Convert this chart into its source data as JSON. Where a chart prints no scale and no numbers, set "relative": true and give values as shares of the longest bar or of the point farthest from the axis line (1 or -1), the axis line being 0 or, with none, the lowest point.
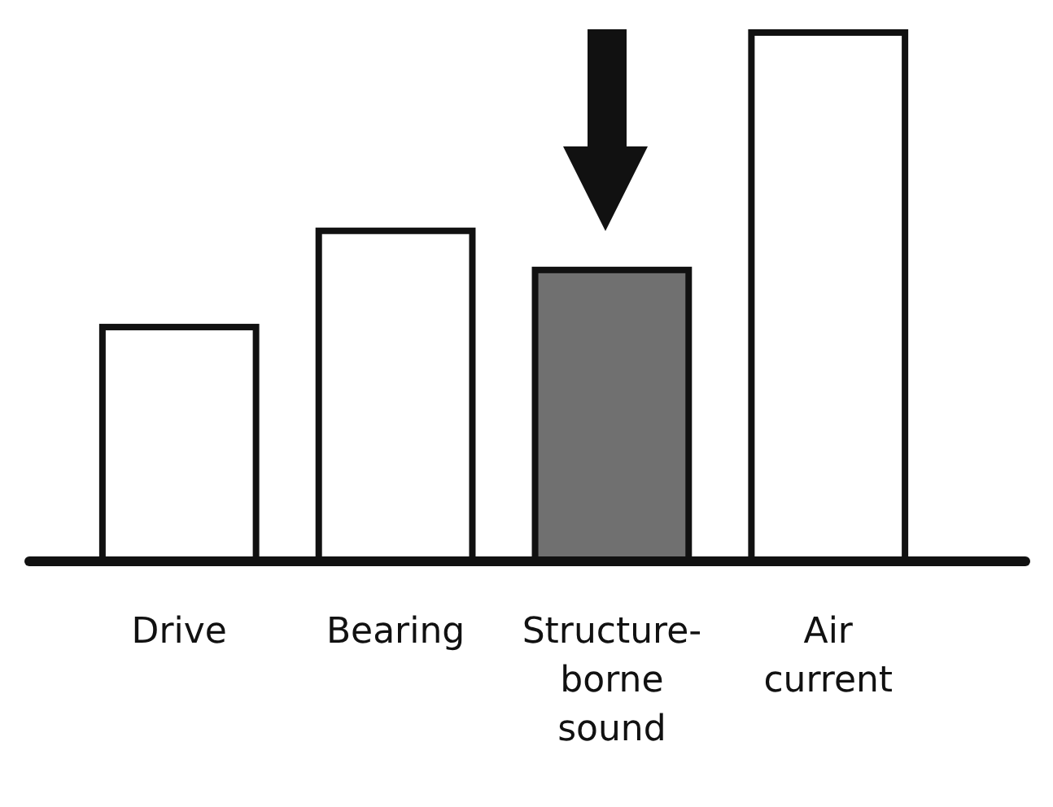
{
  "chart_data": {
    "type": "bar",
    "relative": true,
    "categories": [
      "Drive",
      "Bearing",
      "Structure-\nborne\nsound",
      "Air\ncurrent"
    ],
    "values": [
      0.443,
      0.625,
      0.551,
      1
    ],
    "colors": [
      "#ffffff",
      "#ffffff",
      "#707070",
      "#ffffff"
    ]
  }
}
